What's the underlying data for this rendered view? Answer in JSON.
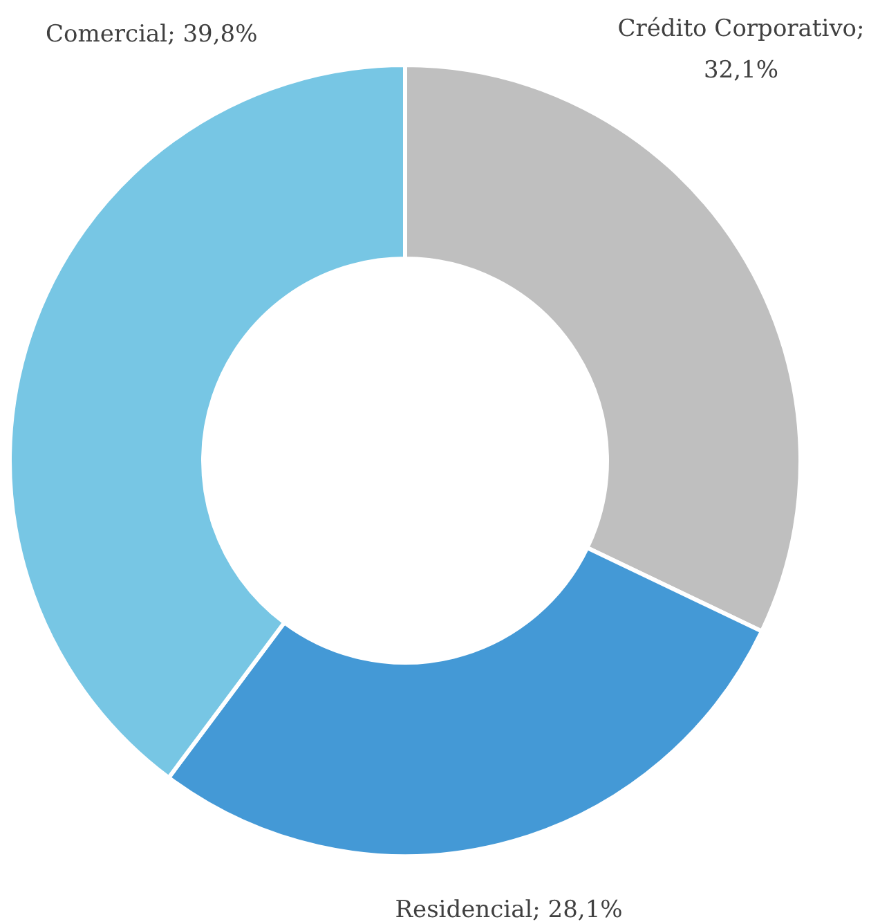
{
  "chart_data": {
    "type": "donut",
    "categories": [
      "Crédito Corporativo; 32,1%",
      "Residencial; 28,1%",
      "Comercial; 39,8%"
    ],
    "values": [
      32.1,
      28.1,
      39.8
    ],
    "colors": [
      "#bfbfbf",
      "#4499d6",
      "#77c6e4"
    ]
  }
}
